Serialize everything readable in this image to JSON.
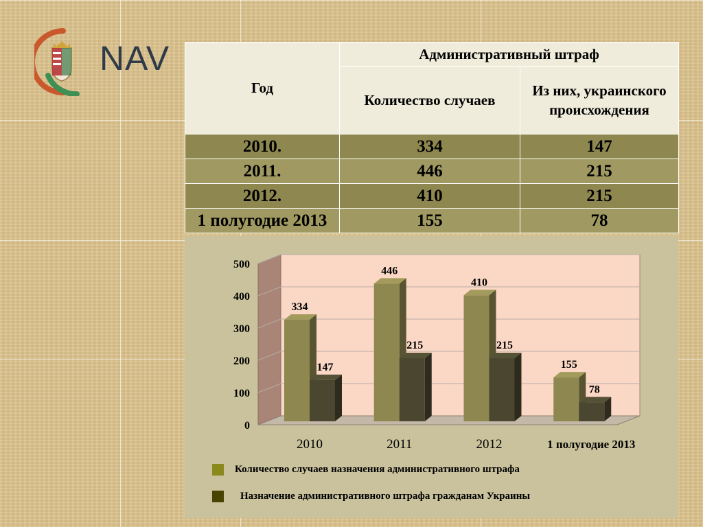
{
  "logo": {
    "text": "NAV",
    "icon": "hungarian-coat-of-arms-icon"
  },
  "table": {
    "header_year": "Год",
    "header_group": "Административный штраф",
    "header_count": "Количество случаев",
    "header_ukrainian": "Из них, украинского происхождения",
    "rows": [
      {
        "year": "2010.",
        "count": "334",
        "ukrainian": "147"
      },
      {
        "year": "2011.",
        "count": "446",
        "ukrainian": "215"
      },
      {
        "year": "2012.",
        "count": "410",
        "ukrainian": "215"
      },
      {
        "year": "1 полугодие 2013",
        "count": "155",
        "ukrainian": "78"
      }
    ]
  },
  "chart_data": {
    "type": "bar",
    "categories": [
      "2010",
      "2011",
      "2012",
      "1 полугодие 2013"
    ],
    "series": [
      {
        "name": "Количество случаев назначения административного штрафа",
        "values": [
          334,
          446,
          410,
          155
        ],
        "color": "#8e8750"
      },
      {
        "name": "Назначение административного штрафа  гражданам Украины",
        "values": [
          147,
          215,
          215,
          78
        ],
        "color": "#4a4630"
      }
    ],
    "yticks": [
      "0",
      "100",
      "200",
      "300",
      "400",
      "500"
    ],
    "ylim": [
      0,
      500
    ],
    "grid": true,
    "three_d": true,
    "legend_position": "bottom-left",
    "plot_background": "#fbd7c5"
  }
}
